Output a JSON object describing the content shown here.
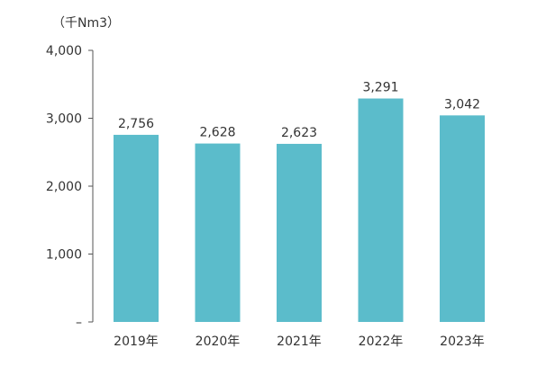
{
  "chart_data": {
    "type": "bar",
    "unit": "（千Nm3）",
    "categories": [
      "2019年",
      "2020年",
      "2021年",
      "2022年",
      "2023年"
    ],
    "values": [
      2756,
      2628,
      2623,
      3291,
      3042
    ],
    "value_labels": [
      "2,756",
      "2,628",
      "2,623",
      "3,291",
      "3,042"
    ],
    "ylim": [
      0,
      4000
    ],
    "yticks": [
      0,
      1000,
      2000,
      3000,
      4000
    ],
    "ytick_labels": [
      "–",
      "1,000",
      "2,000",
      "3,000",
      "4,000"
    ],
    "grid": false,
    "legend": "none",
    "colors": {
      "bar": "#5BBCCB",
      "axis": "#555555",
      "text": "#333333"
    }
  }
}
